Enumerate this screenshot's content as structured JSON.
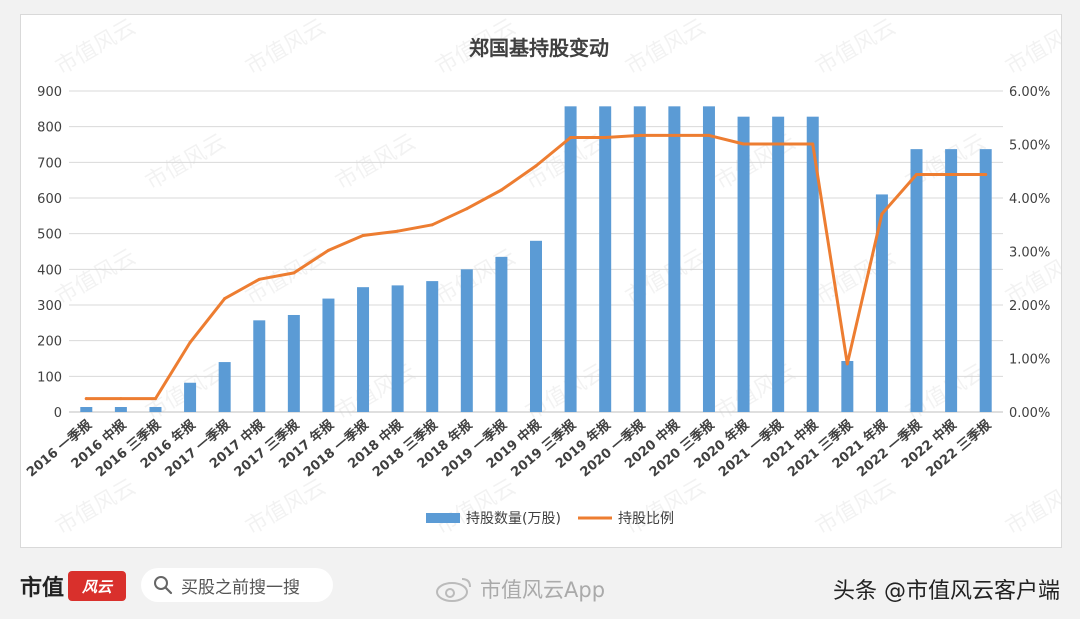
{
  "chart_data": {
    "type": "bar+line",
    "title": "郑国基持股变动",
    "categories": [
      "2016 一季报",
      "2016 中报",
      "2016 三季报",
      "2016 年报",
      "2017 一季报",
      "2017 中报",
      "2017 三季报",
      "2017 年报",
      "2018 一季报",
      "2018 中报",
      "2018 三季报",
      "2018 年报",
      "2019 一季报",
      "2019 中报",
      "2019 三季报",
      "2019 年报",
      "2020 一季报",
      "2020 中报",
      "2020 三季报",
      "2020 年报",
      "2021 一季报",
      "2021 中报",
      "2021 三季报",
      "2021 年报",
      "2022 一季报",
      "2022 中报",
      "2022 三季报"
    ],
    "series": [
      {
        "name": "持股数量(万股)",
        "type": "bar",
        "axis": "left",
        "color": "#5b9bd5",
        "values": [
          14,
          14,
          14,
          82,
          140,
          257,
          272,
          318,
          350,
          355,
          367,
          400,
          435,
          480,
          857,
          857,
          857,
          857,
          857,
          828,
          828,
          828,
          143,
          610,
          737,
          737,
          737
        ]
      },
      {
        "name": "持股比例",
        "type": "line",
        "axis": "right",
        "color": "#ed7d31",
        "values": [
          0.25,
          0.25,
          0.25,
          1.3,
          2.12,
          2.48,
          2.6,
          3.02,
          3.3,
          3.38,
          3.5,
          3.8,
          4.15,
          4.6,
          5.13,
          5.13,
          5.17,
          5.17,
          5.17,
          5.01,
          5.01,
          5.01,
          0.9,
          3.7,
          4.44,
          4.44,
          4.44
        ]
      }
    ],
    "y_left": {
      "min": 0,
      "max": 900,
      "ticks": [
        "0",
        "100",
        "200",
        "300",
        "400",
        "500",
        "600",
        "700",
        "800",
        "900"
      ]
    },
    "y_right": {
      "min": 0,
      "max": 6,
      "ticks": [
        "0.00%",
        "1.00%",
        "2.00%",
        "3.00%",
        "4.00%",
        "5.00%",
        "6.00%"
      ]
    },
    "grid": true,
    "legend": "bottom",
    "watermark": "市值风云"
  },
  "footer": {
    "brand": "市值",
    "brand_logo": "风云",
    "search_placeholder": "买股之前搜一搜",
    "app_tag": "市值风云App",
    "byline": "头条 @市值风云客户端"
  },
  "colors": {
    "bar": "#5b9bd5",
    "line": "#ed7d31",
    "grid": "#d9d9d9",
    "accent": "#d9302c"
  },
  "icons": {
    "search": "search-icon",
    "weibo": "weibo-icon"
  }
}
